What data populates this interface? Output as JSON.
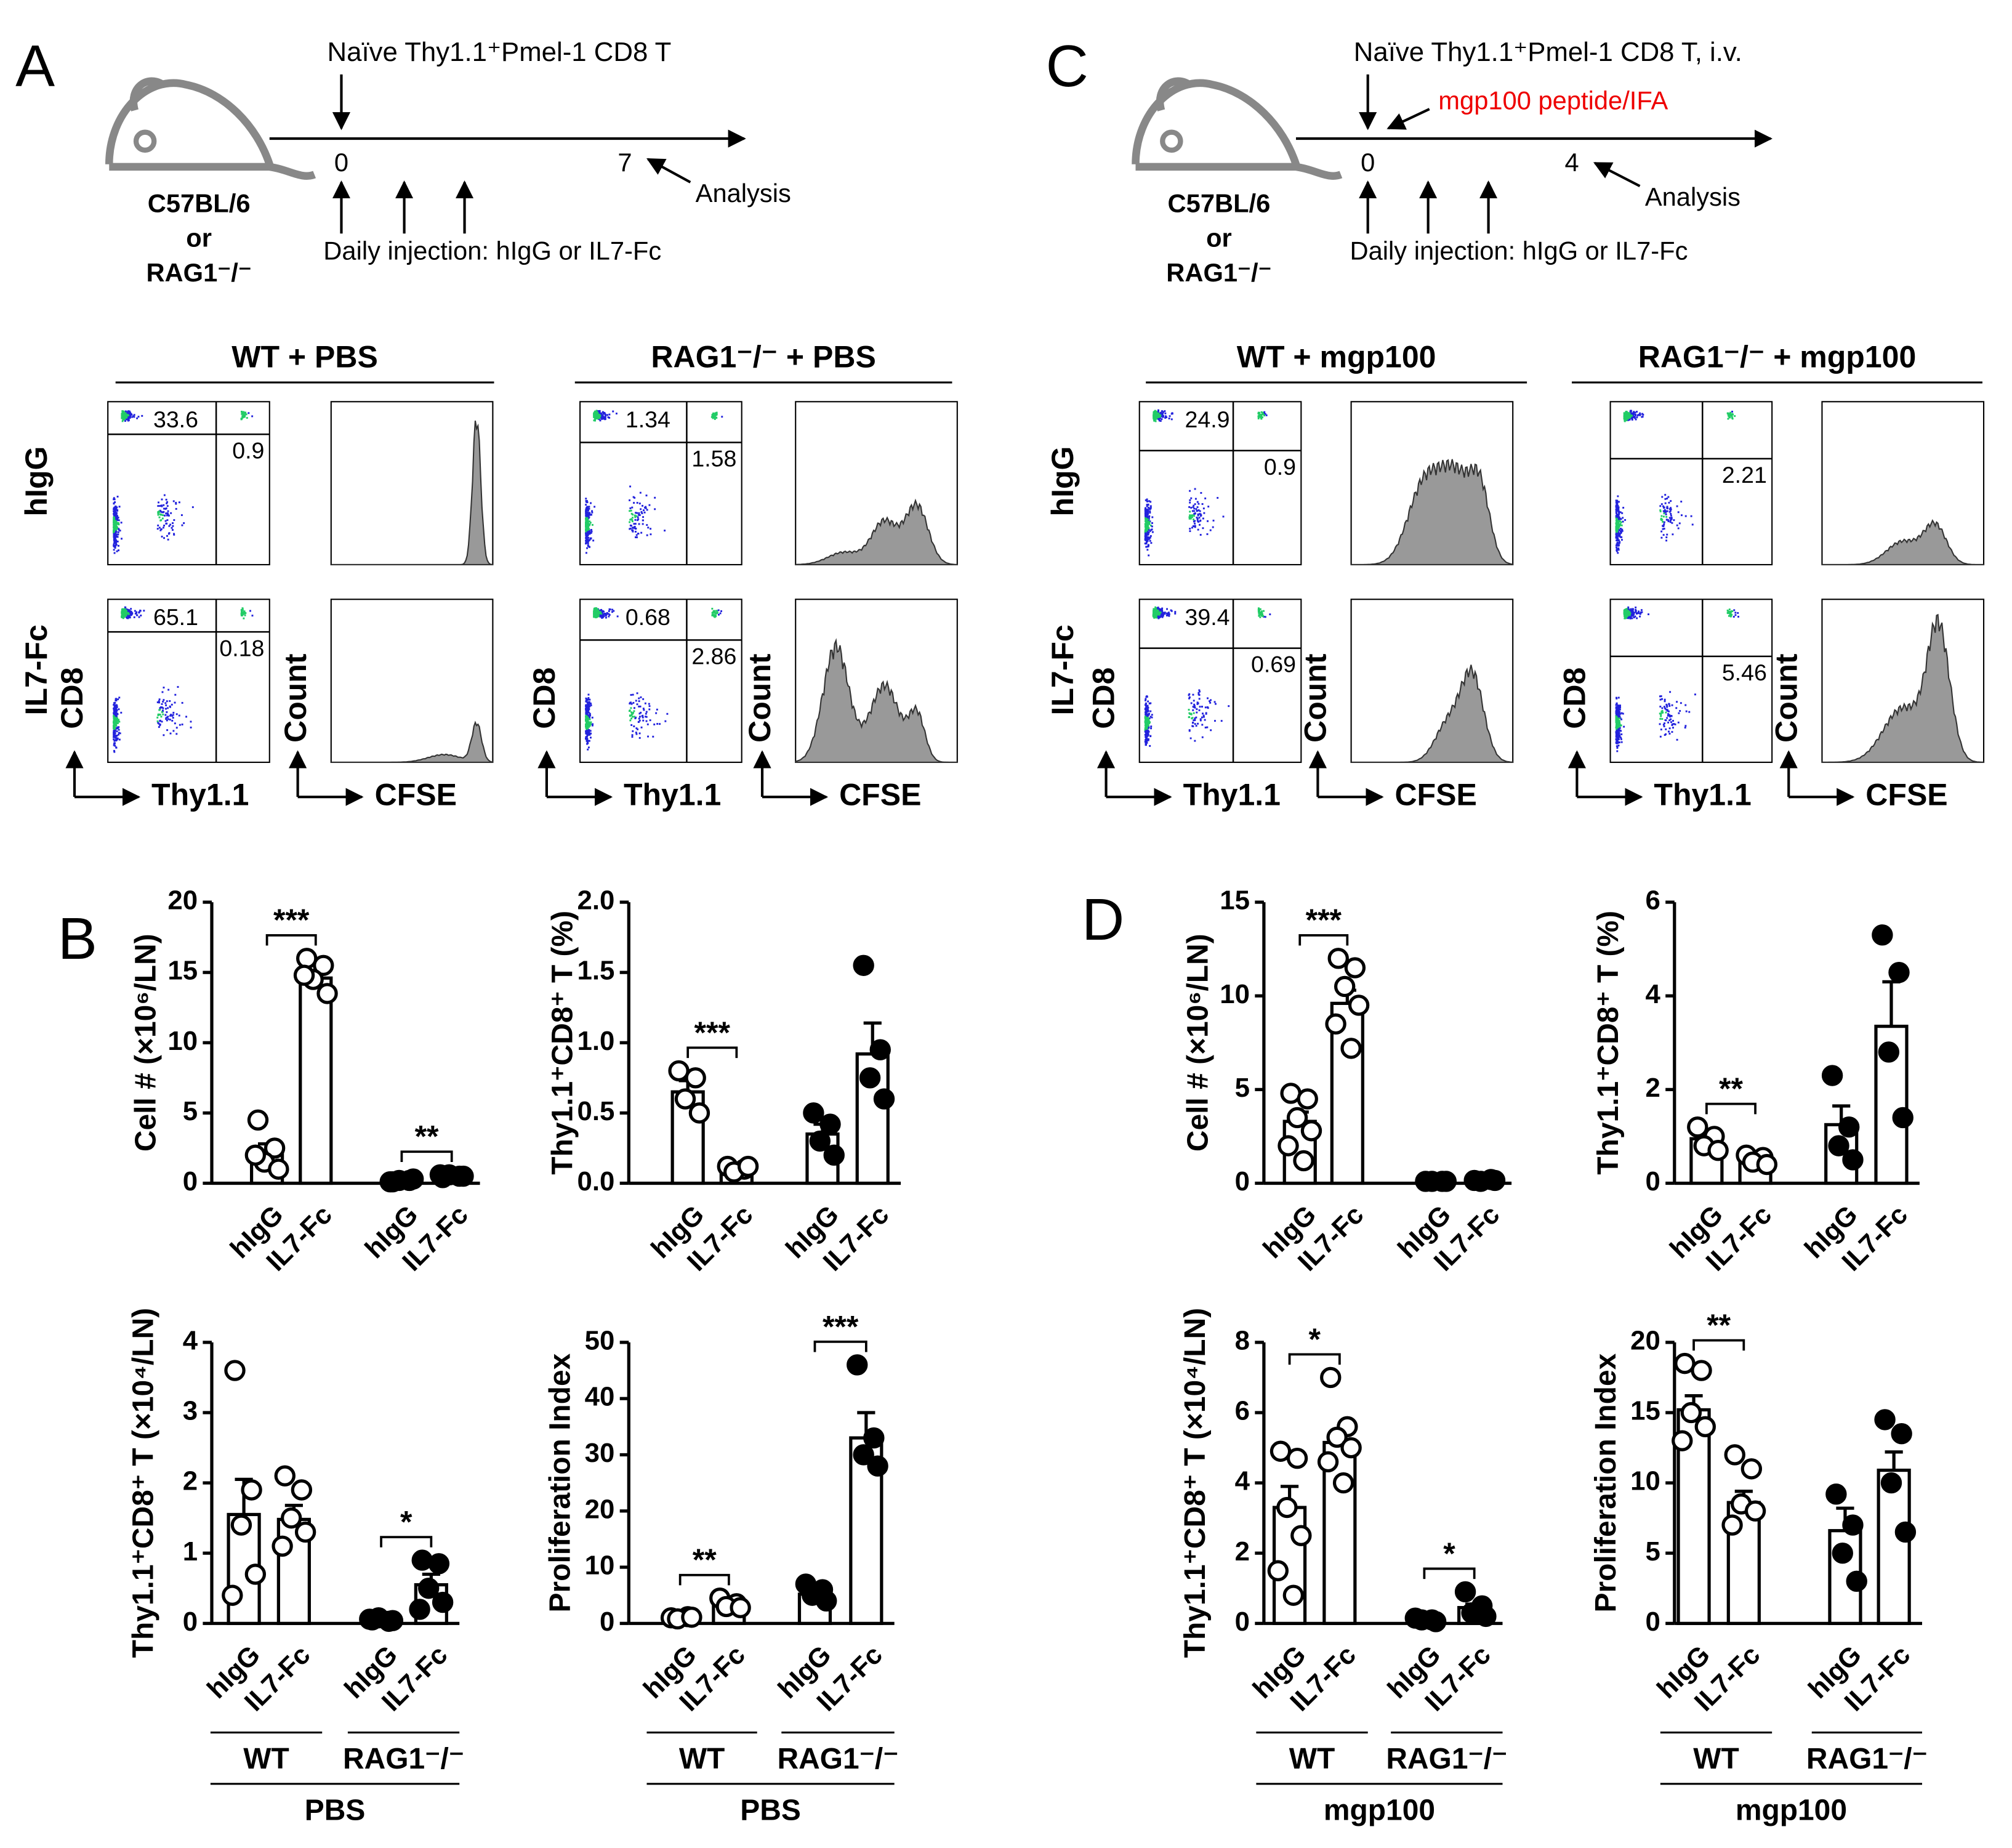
{
  "panel_labels": [
    "A",
    "B",
    "C",
    "D"
  ],
  "schemes": [
    {
      "cells": "Naïve Thy1.1⁺Pmel-1 CD8 T",
      "day0": "0",
      "day_end": "7",
      "analysis": "Analysis",
      "strain": [
        "C57BL/6",
        "or",
        "RAG1⁻/⁻"
      ],
      "injection": "Daily injection: hIgG or IL7-Fc"
    },
    {
      "cells": "Naïve Thy1.1⁺Pmel-1 CD8 T, i.v.",
      "peptide": "mgp100 peptide/IFA",
      "day0": "0",
      "day_end": "4",
      "analysis": "Analysis",
      "strain": [
        "C57BL/6",
        "or",
        "RAG1⁻/⁻"
      ],
      "injection": "Daily injection: hIgG or IL7-Fc"
    }
  ],
  "row_labels": [
    "hIgG",
    "IL7-Fc"
  ],
  "flow_axes": {
    "scatter_x": "Thy1.1",
    "scatter_y": "CD8",
    "hist_x": "CFSE",
    "hist_y": "Count"
  },
  "flow": [
    {
      "title": "WT + PBS",
      "rows": [
        {
          "upper_left": "33.6",
          "lower_right": "0.9"
        },
        {
          "upper_left": "65.1",
          "lower_right": "0.18"
        }
      ]
    },
    {
      "title": "RAG1⁻/⁻ + PBS",
      "rows": [
        {
          "upper_left": "1.34",
          "lower_right": "1.58"
        },
        {
          "upper_left": "0.68",
          "lower_right": "2.86"
        }
      ]
    },
    {
      "title": "WT + mgp100",
      "rows": [
        {
          "upper_left": "24.9",
          "lower_right": "0.9"
        },
        {
          "upper_left": "39.4",
          "lower_right": "0.69"
        }
      ]
    },
    {
      "title": "RAG1⁻/⁻ + mgp100",
      "rows": [
        {
          "lower_right": "2.21"
        },
        {
          "lower_right": "5.46"
        }
      ]
    }
  ],
  "chart_data": [
    {
      "type": "bar",
      "y_label": "Cell # (×10⁶/LN)",
      "categories": [
        "hIgG",
        "IL7-Fc",
        "hIgG",
        "IL7-Fc"
      ],
      "values": [
        2.2,
        14.6,
        0.2,
        0.5
      ],
      "errors": [
        0.6,
        0.5,
        0.05,
        0.1
      ],
      "points": [
        [
          4.5,
          2.5,
          1.5,
          1.0,
          2.0
        ],
        [
          16,
          15.5,
          14.5,
          13.5,
          14.8
        ],
        [
          0.1,
          0.2,
          0.2,
          0.3,
          0.1
        ],
        [
          0.4,
          0.5,
          0.6,
          0.5,
          0.6
        ]
      ],
      "markers": [
        "open",
        "open",
        "filled",
        "filled"
      ],
      "significance": [
        {
          "pair": [
            0,
            1
          ],
          "label": "***"
        },
        {
          "pair": [
            2,
            3
          ],
          "label": "**"
        }
      ],
      "ylim": [
        0,
        20
      ],
      "yticks": [
        0,
        5,
        10,
        15,
        20
      ]
    },
    {
      "type": "bar",
      "y_label": "Thy1.1⁺CD8⁺ T (%)",
      "categories": [
        "hIgG",
        "IL7-Fc",
        "hIgG",
        "IL7-Fc"
      ],
      "values": [
        0.65,
        0.1,
        0.35,
        0.92
      ],
      "errors": [
        0.08,
        0.02,
        0.07,
        0.22
      ],
      "points": [
        [
          0.8,
          0.75,
          0.6,
          0.5
        ],
        [
          0.12,
          0.1,
          0.08,
          0.12
        ],
        [
          0.5,
          0.42,
          0.3,
          0.2
        ],
        [
          1.55,
          0.95,
          0.75,
          0.6
        ]
      ],
      "markers": [
        "open",
        "open",
        "filled",
        "filled"
      ],
      "significance": [
        {
          "pair": [
            0,
            1
          ],
          "label": "***"
        }
      ],
      "ylim": [
        0,
        2
      ],
      "yticks": [
        {
          "value": 0,
          "label": "0.0"
        },
        0.5,
        {
          "value": 1,
          "label": "1.0"
        },
        1.5,
        {
          "value": 2,
          "label": "2.0"
        }
      ]
    },
    {
      "type": "bar",
      "y_label": "Thy1.1⁺CD8⁺ T (×10⁴/LN)",
      "categories": [
        "hIgG",
        "IL7-Fc",
        "hIgG",
        "IL7-Fc"
      ],
      "values": [
        1.55,
        1.48,
        0.05,
        0.55
      ],
      "errors": [
        0.5,
        0.2,
        0.02,
        0.15
      ],
      "points": [
        [
          3.6,
          1.9,
          1.4,
          0.7,
          0.4
        ],
        [
          2.1,
          1.9,
          1.5,
          1.3,
          1.1
        ],
        [
          0.05,
          0.03,
          0.08,
          0.04,
          0.06
        ],
        [
          0.9,
          0.85,
          0.5,
          0.3,
          0.2
        ]
      ],
      "markers": [
        "open",
        "open",
        "filled",
        "filled"
      ],
      "significance": [
        {
          "pair": [
            2,
            3
          ],
          "label": "*"
        }
      ],
      "ylim": [
        0,
        4
      ],
      "yticks": [
        0,
        1,
        2,
        3,
        4
      ],
      "groups": [
        "WT",
        "RAG1⁻/⁻"
      ],
      "condition": "PBS"
    },
    {
      "type": "bar",
      "y_label": "Proliferation Index",
      "categories": [
        "hIgG",
        "IL7-Fc",
        "hIgG",
        "IL7-Fc"
      ],
      "values": [
        1,
        3.5,
        5.2,
        33
      ],
      "errors": [
        0.3,
        0.5,
        0.6,
        4.5
      ],
      "points": [
        [
          1,
          1.2,
          0.8,
          1.1
        ],
        [
          4.5,
          3.5,
          3,
          2.8
        ],
        [
          7,
          6,
          5,
          4
        ],
        [
          46,
          33,
          30,
          28
        ]
      ],
      "markers": [
        "open",
        "open",
        "filled",
        "filled"
      ],
      "significance": [
        {
          "pair": [
            0,
            1
          ],
          "label": "**"
        },
        {
          "pair": [
            2,
            3
          ],
          "label": "***"
        }
      ],
      "ylim": [
        0,
        50
      ],
      "yticks": [
        0,
        10,
        20,
        30,
        40,
        50
      ],
      "groups": [
        "WT",
        "RAG1⁻/⁻"
      ],
      "condition": "PBS"
    },
    {
      "type": "bar",
      "y_label": "Cell # (×10⁶/LN)",
      "categories": [
        "hIgG",
        "IL7-Fc",
        "hIgG",
        "IL7-Fc"
      ],
      "values": [
        3.3,
        9.6,
        0.1,
        0.15
      ],
      "errors": [
        0.5,
        0.7,
        0.02,
        0.03
      ],
      "points": [
        [
          4.8,
          4.5,
          3.5,
          2.8,
          2.0,
          1.2
        ],
        [
          12,
          11.5,
          10.5,
          9.5,
          8.5,
          7.2
        ],
        [
          0.1,
          0.1,
          0.1,
          0.1
        ],
        [
          0.15,
          0.2,
          0.1,
          0.15
        ]
      ],
      "markers": [
        "open",
        "open",
        "filled",
        "filled"
      ],
      "significance": [
        {
          "pair": [
            0,
            1
          ],
          "label": "***"
        }
      ],
      "ylim": [
        0,
        15
      ],
      "yticks": [
        0,
        5,
        10,
        15
      ]
    },
    {
      "type": "bar",
      "y_label": "Thy1.1⁺CD8⁺ T (%)",
      "categories": [
        "hIgG",
        "IL7-Fc",
        "hIgG",
        "IL7-Fc"
      ],
      "values": [
        0.95,
        0.5,
        1.25,
        3.35
      ],
      "errors": [
        0.1,
        0.05,
        0.4,
        0.95
      ],
      "points": [
        [
          1.2,
          1.0,
          0.8,
          0.7
        ],
        [
          0.6,
          0.55,
          0.45,
          0.4
        ],
        [
          2.3,
          1.2,
          0.8,
          0.5
        ],
        [
          5.3,
          4.5,
          2.8,
          1.4
        ]
      ],
      "markers": [
        "open",
        "open",
        "filled",
        "filled"
      ],
      "significance": [
        {
          "pair": [
            0,
            1
          ],
          "label": "**"
        }
      ],
      "ylim": [
        0,
        6
      ],
      "yticks": [
        0,
        2,
        4,
        6
      ]
    },
    {
      "type": "bar",
      "y_label": "Thy1.1⁺CD8⁺ T (×10⁴/LN)",
      "categories": [
        "hIgG",
        "IL7-Fc",
        "hIgG",
        "IL7-Fc"
      ],
      "values": [
        3.3,
        5.15,
        0.1,
        0.45
      ],
      "errors": [
        0.6,
        0.35,
        0.03,
        0.1
      ],
      "points": [
        [
          4.9,
          4.7,
          3.3,
          2.5,
          1.5,
          0.8
        ],
        [
          7.0,
          5.6,
          5.3,
          5.0,
          4.6,
          4.0
        ],
        [
          0.15,
          0.1,
          0.1,
          0.05
        ],
        [
          0.9,
          0.5,
          0.3,
          0.2
        ]
      ],
      "markers": [
        "open",
        "open",
        "filled",
        "filled"
      ],
      "significance": [
        {
          "pair": [
            0,
            1
          ],
          "label": "*"
        },
        {
          "pair": [
            2,
            3
          ],
          "label": "*"
        }
      ],
      "ylim": [
        0,
        8
      ],
      "yticks": [
        0,
        2,
        4,
        6,
        8
      ],
      "groups": [
        "WT",
        "RAG1⁻/⁻"
      ],
      "condition": "mgp100"
    },
    {
      "type": "bar",
      "y_label": "Proliferation Index",
      "categories": [
        "hIgG",
        "IL7-Fc",
        "hIgG",
        "IL7-Fc"
      ],
      "values": [
        15.2,
        8.6,
        6.6,
        10.9
      ],
      "errors": [
        1.0,
        0.8,
        1.6,
        1.3
      ],
      "points": [
        [
          18.5,
          18,
          15,
          14,
          13
        ],
        [
          12,
          11,
          8.5,
          8,
          7
        ],
        [
          9.2,
          7,
          5,
          3
        ],
        [
          14.5,
          13.5,
          10,
          6.5
        ]
      ],
      "markers": [
        "open",
        "open",
        "filled",
        "filled"
      ],
      "significance": [
        {
          "pair": [
            0,
            1
          ],
          "label": "**"
        }
      ],
      "ylim": [
        0,
        20
      ],
      "yticks": [
        0,
        5,
        10,
        15,
        20
      ],
      "groups": [
        "WT",
        "RAG1⁻/⁻"
      ],
      "condition": "mgp100"
    }
  ]
}
